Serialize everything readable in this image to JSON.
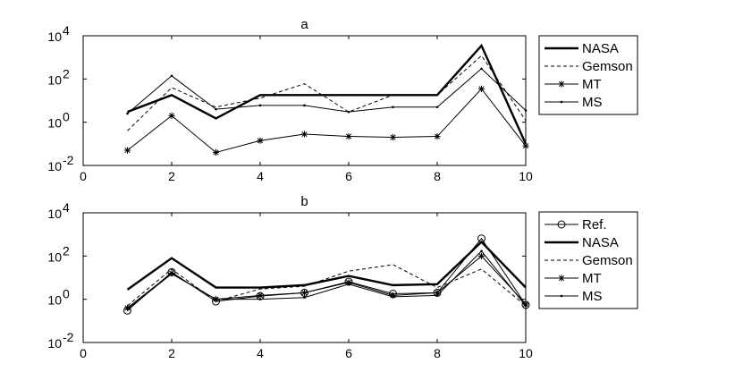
{
  "chart_data": [
    {
      "type": "line",
      "title": "a",
      "xlim": [
        0,
        10
      ],
      "ylim": [
        0.01,
        10000
      ],
      "yscale": "log",
      "xticks": [
        "0",
        "2",
        "4",
        "6",
        "8",
        "10"
      ],
      "yticks": [
        {
          "base": "10",
          "exp": "-2"
        },
        {
          "base": "10",
          "exp": "0"
        },
        {
          "base": "10",
          "exp": "2"
        },
        {
          "base": "10",
          "exp": "4"
        }
      ],
      "x": [
        1,
        2,
        3,
        4,
        5,
        6,
        7,
        8,
        9,
        10
      ],
      "legend_position": "right",
      "series": [
        {
          "name": "NASA",
          "style": "thick",
          "values": [
            3,
            18,
            1.5,
            18,
            18,
            18,
            18,
            18,
            3500,
            0.1
          ]
        },
        {
          "name": "Gemson",
          "style": "dashed",
          "values": [
            0.4,
            40,
            5,
            13,
            60,
            3,
            18,
            18,
            1200,
            1.2
          ]
        },
        {
          "name": "MT",
          "style": "star",
          "values": [
            0.05,
            2,
            0.04,
            0.14,
            0.28,
            0.22,
            0.2,
            0.22,
            35,
            0.08
          ]
        },
        {
          "name": "MS",
          "style": "dot",
          "values": [
            2.5,
            140,
            4,
            6,
            6,
            3,
            5,
            5,
            300,
            3.5
          ]
        }
      ]
    },
    {
      "type": "line",
      "title": "b",
      "xlim": [
        0,
        10
      ],
      "ylim": [
        0.01,
        10000
      ],
      "yscale": "log",
      "xticks": [
        "0",
        "2",
        "4",
        "6",
        "8",
        "10"
      ],
      "yticks": [
        {
          "base": "10",
          "exp": "-2"
        },
        {
          "base": "10",
          "exp": "0"
        },
        {
          "base": "10",
          "exp": "2"
        },
        {
          "base": "10",
          "exp": "4"
        }
      ],
      "x": [
        1,
        2,
        3,
        4,
        5,
        6,
        7,
        8,
        9,
        10
      ],
      "legend_position": "right",
      "series": [
        {
          "name": "Ref.",
          "style": "circle",
          "values": [
            0.3,
            18,
            0.8,
            1.4,
            2,
            6.5,
            1.8,
            2,
            650,
            0.55
          ]
        },
        {
          "name": "NASA",
          "style": "thick",
          "values": [
            2.8,
            80,
            3.5,
            3.5,
            4.5,
            12,
            4.5,
            5,
            450,
            3.5
          ]
        },
        {
          "name": "Gemson",
          "style": "dashed",
          "values": [
            0.5,
            25,
            0.8,
            3,
            4,
            20,
            40,
            3.5,
            25,
            0.5
          ]
        },
        {
          "name": "MT",
          "style": "star",
          "values": [
            0.4,
            16,
            1,
            1.5,
            2,
            6,
            1.5,
            2,
            100,
            0.6
          ]
        },
        {
          "name": "MS",
          "style": "dot",
          "values": [
            0.35,
            15,
            1,
            1,
            1.2,
            5,
            1.3,
            1.5,
            170,
            0.5
          ]
        }
      ]
    }
  ]
}
